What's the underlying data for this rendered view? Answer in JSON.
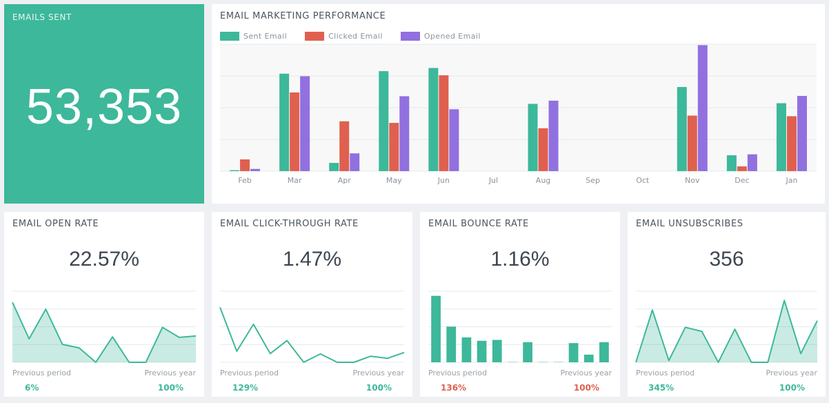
{
  "colors": {
    "sent": "#3db89a",
    "clicked": "#e0604f",
    "opened": "#9170e0",
    "positive": "#3db89a",
    "negative": "#e0604f",
    "grid": "#e6e8eb"
  },
  "hero": {
    "title": "EMAILS SENT",
    "value": "53,353"
  },
  "performance": {
    "title": "EMAIL MARKETING PERFORMANCE",
    "legend": [
      "Sent Email",
      "Clicked Email",
      "Opened Email"
    ]
  },
  "cards": [
    {
      "title": "EMAIL OPEN RATE",
      "value": "22.57%",
      "prev_period_label": "Previous period",
      "prev_period_value": "6%",
      "prev_period_status": "positive",
      "prev_year_label": "Previous year",
      "prev_year_value": "100%",
      "prev_year_status": "positive"
    },
    {
      "title": "EMAIL CLICK-THROUGH RATE",
      "value": "1.47%",
      "prev_period_label": "Previous period",
      "prev_period_value": "129%",
      "prev_period_status": "positive",
      "prev_year_label": "Previous year",
      "prev_year_value": "100%",
      "prev_year_status": "positive"
    },
    {
      "title": "EMAIL BOUNCE RATE",
      "value": "1.16%",
      "prev_period_label": "Previous period",
      "prev_period_value": "136%",
      "prev_period_status": "negative",
      "prev_year_label": "Previous year",
      "prev_year_value": "100%",
      "prev_year_status": "negative"
    },
    {
      "title": "EMAIL UNSUBSCRIBES",
      "value": "356",
      "prev_period_label": "Previous period",
      "prev_period_value": "345%",
      "prev_period_status": "positive",
      "prev_year_label": "Previous year",
      "prev_year_value": "100%",
      "prev_year_status": "positive"
    }
  ],
  "chart_data": [
    {
      "type": "bar",
      "title": "EMAIL MARKETING PERFORMANCE",
      "xlabel": "",
      "ylabel": "",
      "grid": true,
      "legend_position": "top-left",
      "ylim": [
        0,
        4
      ],
      "categories": [
        "Feb",
        "Mar",
        "Apr",
        "May",
        "Jun",
        "Jul",
        "Aug",
        "Sep",
        "Oct",
        "Nov",
        "Dec",
        "Jan"
      ],
      "series": [
        {
          "name": "Sent Email",
          "values": [
            0.03,
            3.07,
            0.26,
            3.15,
            3.25,
            0,
            2.12,
            0,
            0,
            2.65,
            0.5,
            2.14
          ]
        },
        {
          "name": "Clicked Email",
          "values": [
            0.37,
            2.48,
            1.57,
            1.52,
            3.02,
            0,
            1.35,
            0,
            0,
            1.75,
            0.15,
            1.73
          ]
        },
        {
          "name": "Opened Email",
          "values": [
            0.07,
            2.99,
            0.56,
            2.36,
            1.95,
            0,
            2.22,
            0,
            0,
            3.97,
            0.53,
            2.37
          ]
        }
      ]
    },
    {
      "type": "area",
      "title": "EMAIL OPEN RATE",
      "grid": true,
      "ylim": [
        0,
        4
      ],
      "values": [
        3.38,
        1.32,
        2.99,
        1.01,
        0.81,
        0,
        1.43,
        0,
        0,
        1.97,
        1.4,
        1.48
      ]
    },
    {
      "type": "line",
      "title": "EMAIL CLICK-THROUGH RATE",
      "grid": true,
      "ylim": [
        0,
        4
      ],
      "values": [
        3.09,
        0.62,
        2.14,
        0.49,
        1.22,
        0,
        0.47,
        0,
        0,
        0.34,
        0.22,
        0.55
      ]
    },
    {
      "type": "bar",
      "title": "EMAIL BOUNCE RATE",
      "grid": true,
      "ylim": [
        0,
        4
      ],
      "values": [
        3.74,
        2.01,
        1.4,
        1.21,
        1.26,
        0,
        1.13,
        0,
        0,
        1.08,
        0.43,
        1.13
      ]
    },
    {
      "type": "area",
      "title": "EMAIL UNSUBSCRIBES",
      "grid": true,
      "ylim": [
        0,
        4
      ],
      "values": [
        0,
        2.94,
        0.1,
        1.97,
        1.74,
        0,
        1.86,
        0,
        0,
        3.48,
        0.49,
        2.34
      ]
    }
  ]
}
